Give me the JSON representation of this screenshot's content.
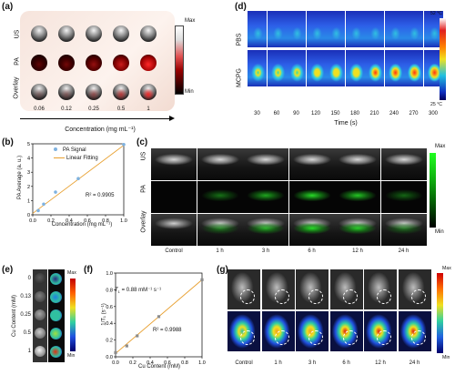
{
  "panels": {
    "a": {
      "label": "(a)",
      "rows": [
        "US",
        "PA",
        "Overlay"
      ],
      "columns": [
        "0.06",
        "0.12",
        "0.25",
        "0.5",
        "1"
      ],
      "axis_title": "Concentration (mg mL⁻¹)",
      "colorbar": {
        "max": "Max",
        "min": "Min"
      },
      "pa_intensity": [
        0.1,
        0.2,
        0.4,
        0.7,
        1.0
      ]
    },
    "b": {
      "label": "(b)",
      "legend": [
        "PA Signal",
        "Linear Fitting"
      ],
      "r2": "R² = 0.9905",
      "xlabel": "Concentration (mg mL⁻¹)",
      "ylabel": "PA Average (a. u.)"
    },
    "c": {
      "label": "(c)",
      "rows": [
        "US",
        "PA",
        "Overlay"
      ],
      "columns": [
        "Control",
        "1 h",
        "3 h",
        "6 h",
        "12 h",
        "24 h"
      ],
      "colorbar": {
        "max": "Max",
        "min": "Min"
      }
    },
    "d": {
      "label": "(d)",
      "rows": [
        "PBS",
        "MCPG"
      ],
      "times": [
        "30",
        "60",
        "90",
        "120",
        "150",
        "180",
        "210",
        "240",
        "270",
        "300"
      ],
      "xlabel": "Time (s)",
      "colorbar": {
        "max": "52 °C",
        "min": "25 °C"
      }
    },
    "e": {
      "label": "(e)",
      "ylabel": "Cu Content (mM)",
      "rows": [
        "0",
        "0.13",
        "0.25",
        "0.5",
        "1"
      ],
      "colorbar": {
        "max": "Max",
        "min": "Min"
      }
    },
    "f": {
      "label": "(f)",
      "annotation_t1_label": "T",
      "annotation_t1_sub": "1",
      "annotation_t1_value": " = 0.88 mM⁻¹ s⁻¹",
      "r2": "R² = 0.9988",
      "xlabel": "Cu Content (mM)",
      "ylabel": "1/T₁ (s⁻¹)"
    },
    "g": {
      "label": "(g)",
      "columns": [
        "Control",
        "1 h",
        "3 h",
        "6 h",
        "12 h",
        "24 h"
      ],
      "colorbar": {
        "max": "Max",
        "min": "Min"
      }
    }
  },
  "chart_data": [
    {
      "type": "scatter",
      "panel": "b",
      "x": [
        0.06,
        0.12,
        0.25,
        0.5,
        1.0
      ],
      "y": [
        0.3,
        0.75,
        1.6,
        2.55,
        4.95
      ],
      "fit": {
        "x": [
          0.0,
          1.0
        ],
        "y": [
          0.1,
          4.9
        ]
      },
      "xticks": [
        "0.0",
        "0.2",
        "0.4",
        "0.6",
        "0.8",
        "1.0"
      ],
      "yticks": [
        "0",
        "1",
        "2",
        "3",
        "4",
        "5"
      ],
      "xlim": [
        0,
        1.0
      ],
      "ylim": [
        0,
        5
      ],
      "colors": {
        "points": "#7fb2e0",
        "fit": "#e8a030"
      }
    },
    {
      "type": "scatter",
      "panel": "f",
      "x": [
        0.0,
        0.13,
        0.25,
        0.5,
        1.0
      ],
      "y": [
        0.05,
        0.13,
        0.25,
        0.48,
        0.92
      ],
      "fit": {
        "x": [
          0.0,
          1.0
        ],
        "y": [
          0.04,
          0.92
        ]
      },
      "xticks": [
        "0.0",
        "0.2",
        "0.4",
        "0.6",
        "0.8",
        "1.0"
      ],
      "yticks": [
        "0.0",
        "0.2",
        "0.4",
        "0.6",
        "0.8",
        "1.0"
      ],
      "xlim": [
        0,
        1.0
      ],
      "ylim": [
        0,
        1.0
      ],
      "colors": {
        "points": "#8c8c8c",
        "fit": "#e8a030"
      }
    }
  ]
}
